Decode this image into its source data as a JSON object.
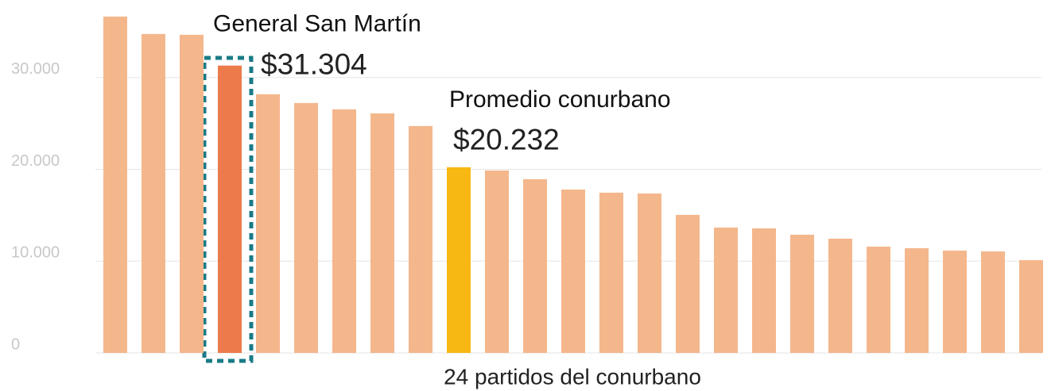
{
  "chart_data": {
    "type": "bar",
    "x_label": "24 partidos del conurbano",
    "categories": [
      null,
      null,
      null,
      "General San Martín",
      null,
      null,
      null,
      null,
      null,
      "Promedio conurbano",
      null,
      null,
      null,
      null,
      null,
      null,
      null,
      null,
      null,
      null,
      null,
      null,
      null,
      null,
      null
    ],
    "values": [
      36650,
      34750,
      34660,
      31304,
      28180,
      27230,
      26540,
      26100,
      24720,
      20232,
      19880,
      18930,
      17800,
      17460,
      17370,
      15040,
      13660,
      13570,
      12880,
      12450,
      11580,
      11410,
      11150,
      11060,
      10110
    ],
    "value_labels": [
      null,
      null,
      null,
      "$31.304",
      null,
      null,
      null,
      null,
      null,
      "$20.232",
      null,
      null,
      null,
      null,
      null,
      null,
      null,
      null,
      null,
      null,
      null,
      null,
      null,
      null,
      null
    ],
    "colors": [
      "#f4b78c",
      "#f4b78c",
      "#f4b78c",
      "#ec7a4b",
      "#f4b78c",
      "#f4b78c",
      "#f4b78c",
      "#f4b78c",
      "#f4b78c",
      "#f7b813",
      "#f4b78c",
      "#f4b78c",
      "#f4b78c",
      "#f4b78c",
      "#f4b78c",
      "#f4b78c",
      "#f4b78c",
      "#f4b78c",
      "#f4b78c",
      "#f4b78c",
      "#f4b78c",
      "#f4b78c",
      "#f4b78c",
      "#f4b78c",
      "#f4b78c"
    ],
    "ylim": [
      0,
      38451
    ],
    "yticks": [
      0,
      {
        "value": 10000,
        "label": "10.000"
      },
      {
        "value": 20000,
        "label": "20.000"
      },
      {
        "value": 30000,
        "label": "30.000"
      }
    ],
    "grid": true
  }
}
